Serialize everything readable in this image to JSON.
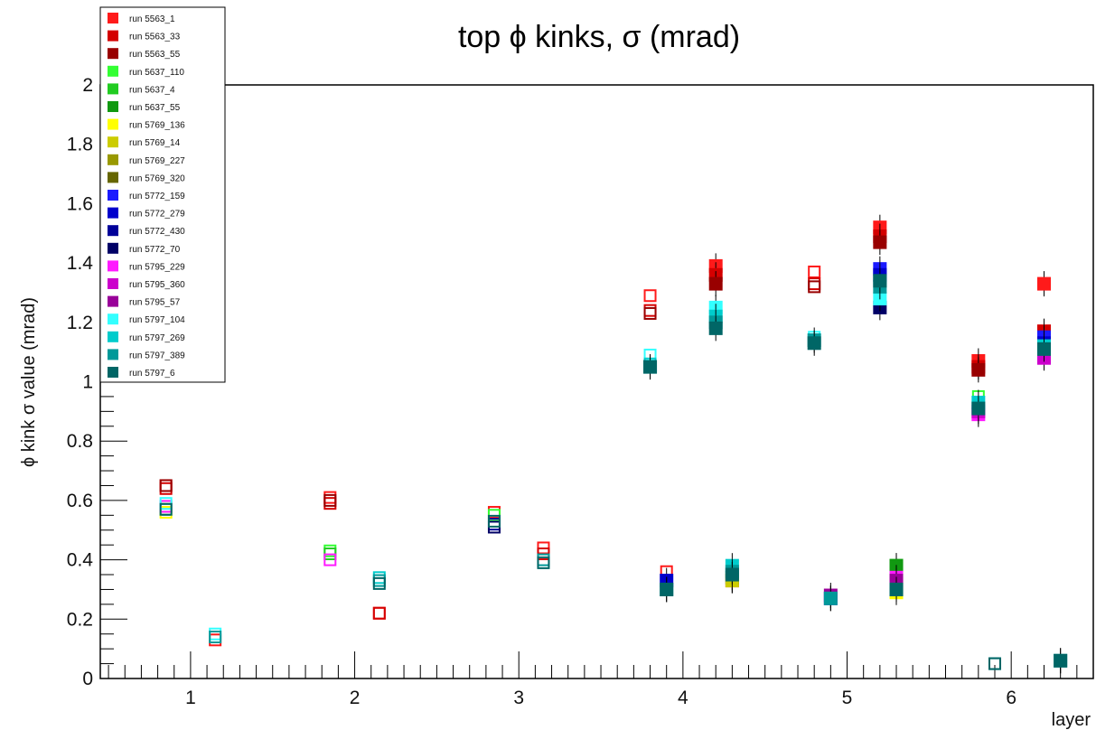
{
  "chart_data": {
    "type": "scatter",
    "title": "top ϕ kinks, σ (mrad)",
    "xlabel": "layer",
    "ylabel": "ϕ kink σ value (mrad)",
    "xlim": [
      0.45,
      6.5
    ],
    "ylim": [
      0,
      2
    ],
    "x_ticks": [
      "1",
      "2",
      "3",
      "4",
      "5",
      "6"
    ],
    "y_ticks": [
      "0",
      "0.2",
      "0.4",
      "0.6",
      "0.8",
      "1",
      "1.2",
      "1.4",
      "1.6",
      "1.8",
      "2"
    ],
    "legend_position": "top-left",
    "series": [
      {
        "name": "run 5563_1",
        "color": "#ff1a1a",
        "points": [
          [
            0.85,
            0.65,
            "o"
          ],
          [
            1.15,
            0.13,
            "o"
          ],
          [
            1.85,
            0.61,
            "o"
          ],
          [
            2.15,
            0.22,
            "o"
          ],
          [
            2.85,
            0.56,
            "o"
          ],
          [
            3.15,
            0.44,
            "o"
          ],
          [
            3.8,
            1.29,
            "o"
          ],
          [
            3.9,
            0.36,
            "o"
          ],
          [
            4.2,
            1.39,
            "f"
          ],
          [
            4.3,
            0.33,
            "f"
          ],
          [
            4.8,
            1.37,
            "o"
          ],
          [
            4.9,
            0.28,
            "o"
          ],
          [
            5.2,
            1.52,
            "f"
          ],
          [
            5.3,
            0.32,
            "f"
          ],
          [
            5.8,
            1.07,
            "f"
          ],
          [
            6.2,
            1.33,
            "f"
          ]
        ]
      },
      {
        "name": "run 5563_33",
        "color": "#d40000",
        "points": [
          [
            0.85,
            0.64,
            "o"
          ],
          [
            1.85,
            0.59,
            "o"
          ],
          [
            2.15,
            0.22,
            "o"
          ],
          [
            3.15,
            0.42,
            "o"
          ],
          [
            3.8,
            1.24,
            "o"
          ],
          [
            4.2,
            1.36,
            "f"
          ],
          [
            4.8,
            1.33,
            "o"
          ],
          [
            5.2,
            1.49,
            "f"
          ],
          [
            5.8,
            1.05,
            "f"
          ],
          [
            6.2,
            1.17,
            "f"
          ]
        ]
      },
      {
        "name": "run 5563_55",
        "color": "#990000",
        "points": [
          [
            0.85,
            0.65,
            "o"
          ],
          [
            1.85,
            0.6,
            "o"
          ],
          [
            3.8,
            1.23,
            "o"
          ],
          [
            4.2,
            1.33,
            "f"
          ],
          [
            4.8,
            1.32,
            "o"
          ],
          [
            5.2,
            1.47,
            "f"
          ],
          [
            5.8,
            1.04,
            "f"
          ],
          [
            6.2,
            1.14,
            "f"
          ]
        ]
      },
      {
        "name": "run 5637_110",
        "color": "#33ff33",
        "points": [
          [
            0.85,
            0.58,
            "o"
          ],
          [
            1.85,
            0.43,
            "o"
          ],
          [
            2.85,
            0.55,
            "o"
          ],
          [
            5.8,
            0.95,
            "o"
          ],
          [
            5.3,
            0.37,
            "f"
          ]
        ]
      },
      {
        "name": "run 5637_4",
        "color": "#22cc22",
        "points": [
          [
            0.85,
            0.57,
            "o"
          ],
          [
            1.85,
            0.42,
            "o"
          ],
          [
            5.3,
            0.38,
            "f"
          ]
        ]
      },
      {
        "name": "run 5637_55",
        "color": "#119911",
        "points": [
          [
            5.3,
            0.38,
            "f"
          ],
          [
            4.3,
            0.34,
            "f"
          ]
        ]
      },
      {
        "name": "run 5769_136",
        "color": "#ffff00",
        "points": [
          [
            0.85,
            0.56,
            "o"
          ],
          [
            5.3,
            0.29,
            "f"
          ]
        ]
      },
      {
        "name": "run 5769_14",
        "color": "#cccc00",
        "points": [
          [
            5.3,
            0.3,
            "f"
          ],
          [
            4.3,
            0.33,
            "f"
          ]
        ]
      },
      {
        "name": "run 5769_227",
        "color": "#999900",
        "points": [
          [
            5.3,
            0.31,
            "f"
          ]
        ]
      },
      {
        "name": "run 5769_320",
        "color": "#666600",
        "points": [
          [
            5.3,
            0.3,
            "f"
          ]
        ]
      },
      {
        "name": "run 5772_159",
        "color": "#1a1aff",
        "points": [
          [
            5.2,
            1.38,
            "f"
          ],
          [
            6.2,
            1.15,
            "f"
          ]
        ]
      },
      {
        "name": "run 5772_279",
        "color": "#0000cc",
        "points": [
          [
            5.2,
            1.36,
            "f"
          ],
          [
            6.2,
            1.13,
            "f"
          ],
          [
            4.9,
            0.27,
            "f"
          ],
          [
            3.9,
            0.33,
            "f"
          ]
        ]
      },
      {
        "name": "run 5772_430",
        "color": "#000099",
        "points": [
          [
            2.85,
            0.52,
            "o"
          ],
          [
            6.2,
            1.1,
            "f"
          ]
        ]
      },
      {
        "name": "run 5772_70",
        "color": "#000066",
        "points": [
          [
            2.85,
            0.51,
            "o"
          ],
          [
            5.2,
            1.25,
            "f"
          ]
        ]
      },
      {
        "name": "run 5795_229",
        "color": "#ff1aff",
        "points": [
          [
            0.85,
            0.58,
            "o"
          ],
          [
            1.85,
            0.4,
            "o"
          ],
          [
            5.8,
            0.89,
            "f"
          ],
          [
            5.3,
            0.34,
            "f"
          ]
        ]
      },
      {
        "name": "run 5795_360",
        "color": "#cc00cc",
        "points": [
          [
            5.8,
            0.9,
            "f"
          ],
          [
            6.2,
            1.08,
            "f"
          ]
        ]
      },
      {
        "name": "run 5795_57",
        "color": "#990099",
        "points": [
          [
            4.9,
            0.28,
            "f"
          ],
          [
            5.3,
            0.33,
            "f"
          ]
        ]
      },
      {
        "name": "run 5797_104",
        "color": "#33ffff",
        "points": [
          [
            0.85,
            0.59,
            "o"
          ],
          [
            1.15,
            0.15,
            "o"
          ],
          [
            3.8,
            1.09,
            "o"
          ],
          [
            4.2,
            1.25,
            "f"
          ],
          [
            4.8,
            1.15,
            "o"
          ],
          [
            5.2,
            1.28,
            "f"
          ]
        ]
      },
      {
        "name": "run 5797_269",
        "color": "#00cccc",
        "points": [
          [
            2.15,
            0.34,
            "o"
          ],
          [
            3.8,
            1.06,
            "o"
          ],
          [
            4.2,
            1.22,
            "f"
          ],
          [
            4.8,
            1.13,
            "o"
          ],
          [
            5.8,
            0.93,
            "f"
          ],
          [
            6.2,
            1.12,
            "f"
          ],
          [
            4.3,
            0.38,
            "f"
          ]
        ]
      },
      {
        "name": "run 5797_389",
        "color": "#009999",
        "points": [
          [
            1.15,
            0.14,
            "o"
          ],
          [
            2.15,
            0.33,
            "o"
          ],
          [
            3.15,
            0.4,
            "o"
          ],
          [
            3.8,
            1.05,
            "f"
          ],
          [
            4.2,
            1.2,
            "f"
          ],
          [
            4.8,
            1.14,
            "f"
          ],
          [
            5.2,
            1.32,
            "f"
          ],
          [
            5.9,
            0.05,
            "o"
          ],
          [
            6.3,
            0.06,
            "f"
          ],
          [
            3.9,
            0.3,
            "f"
          ],
          [
            4.3,
            0.36,
            "f"
          ],
          [
            5.3,
            0.3,
            "f"
          ],
          [
            4.9,
            0.27,
            "f"
          ]
        ]
      },
      {
        "name": "run 5797_6",
        "color": "#006666",
        "points": [
          [
            0.85,
            0.57,
            "o"
          ],
          [
            2.15,
            0.32,
            "o"
          ],
          [
            2.85,
            0.53,
            "o"
          ],
          [
            3.15,
            0.39,
            "o"
          ],
          [
            3.8,
            1.05,
            "f"
          ],
          [
            4.2,
            1.18,
            "f"
          ],
          [
            4.8,
            1.13,
            "f"
          ],
          [
            5.2,
            1.34,
            "f"
          ],
          [
            5.8,
            0.91,
            "f"
          ],
          [
            6.2,
            1.11,
            "f"
          ],
          [
            5.9,
            0.05,
            "o"
          ],
          [
            6.3,
            0.06,
            "f"
          ],
          [
            4.3,
            0.35,
            "f"
          ],
          [
            5.3,
            0.3,
            "f"
          ],
          [
            3.9,
            0.3,
            "f"
          ]
        ]
      }
    ]
  }
}
